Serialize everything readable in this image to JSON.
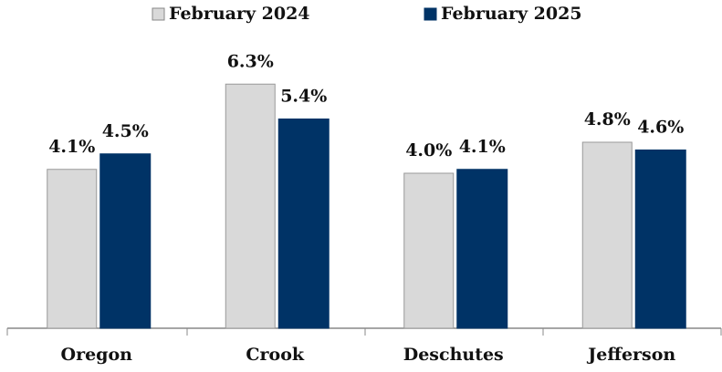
{
  "chart_data": {
    "type": "bar",
    "categories": [
      "Oregon",
      "Crook",
      "Deschutes",
      "Jefferson"
    ],
    "series": [
      {
        "name": "February 2024",
        "color": "#d9d9d9",
        "values": [
          4.1,
          6.3,
          4.0,
          4.8
        ],
        "value_labels": [
          "4.1%",
          "6.3%",
          "4.0%",
          "4.8%"
        ]
      },
      {
        "name": "February 2025",
        "color": "#003366",
        "values": [
          4.5,
          5.4,
          4.1,
          4.6
        ],
        "value_labels": [
          "4.5%",
          "5.4%",
          "4.1%",
          "4.6%"
        ]
      }
    ],
    "ylim": [
      0,
      7
    ],
    "legend": "top"
  }
}
